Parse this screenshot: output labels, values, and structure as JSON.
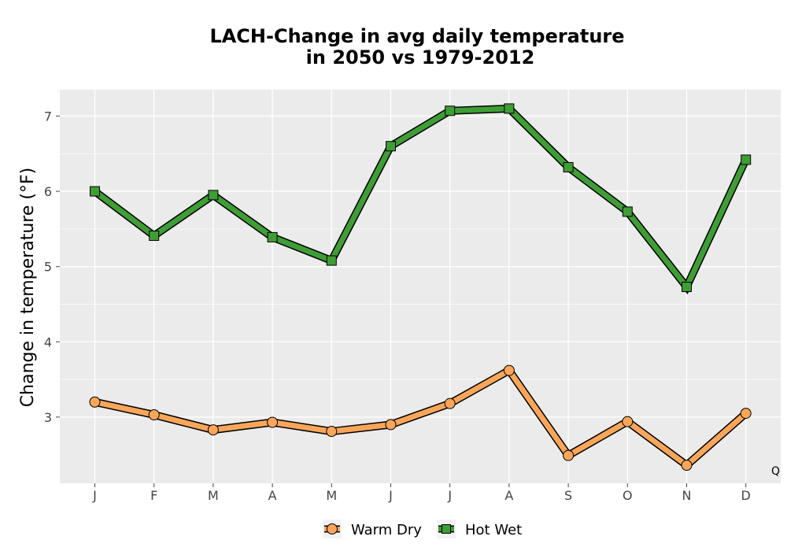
{
  "chart_data": {
    "type": "line",
    "title": [
      "LACH-Change in avg daily temperature",
      "in 2050 vs 1979-2012"
    ],
    "xlabel": "",
    "ylabel": "Change in temperature (°F)",
    "categories": [
      "J",
      "F",
      "M",
      "A",
      "M",
      "J",
      "J",
      "A",
      "S",
      "O",
      "N",
      "D"
    ],
    "ylim": [
      2.12,
      7.35
    ],
    "yticks": [
      3,
      4,
      5,
      6,
      7
    ],
    "grid": true,
    "legend_position": "bottom",
    "corner_note": "Q",
    "series": [
      {
        "name": "Warm Dry",
        "marker": "circle",
        "color": "#F9A65A",
        "values": [
          3.2,
          3.03,
          2.83,
          2.93,
          2.81,
          2.9,
          3.18,
          3.62,
          2.49,
          2.94,
          2.36,
          3.05
        ]
      },
      {
        "name": "Hot Wet",
        "marker": "square",
        "color": "#3F9D35",
        "values": [
          6.0,
          5.41,
          5.95,
          5.39,
          5.08,
          6.6,
          7.07,
          7.1,
          6.32,
          5.73,
          4.73,
          6.42
        ]
      }
    ]
  }
}
